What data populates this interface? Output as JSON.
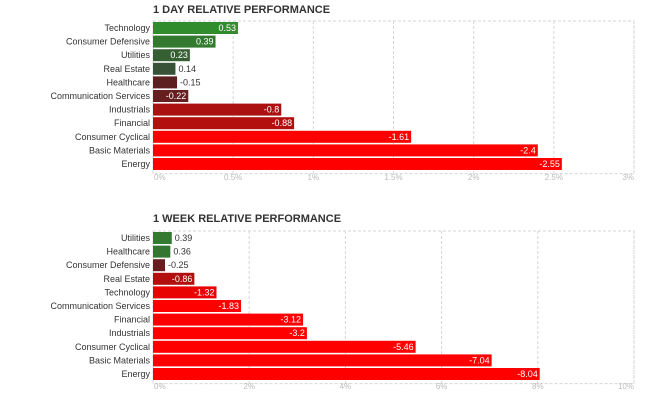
{
  "chart_data": [
    {
      "type": "bar",
      "orientation": "horizontal",
      "title": "1 DAY RELATIVE PERFORMANCE",
      "categories": [
        "Technology",
        "Consumer Defensive",
        "Utilities",
        "Real Estate",
        "Healthcare",
        "Communication Services",
        "Industrials",
        "Financial",
        "Consumer Cyclical",
        "Basic Materials",
        "Energy"
      ],
      "values": [
        0.53,
        0.39,
        0.23,
        0.14,
        -0.15,
        -0.22,
        -0.8,
        -0.88,
        -1.61,
        -2.4,
        -2.55
      ],
      "value_labels": [
        "0.53",
        "0.39",
        "0.23",
        "0.14",
        "-0.15",
        "-0.22",
        "-0.8",
        "-0.88",
        "-1.61",
        "-2.4",
        "-2.55"
      ],
      "xlim": [
        0,
        3
      ],
      "ticks": [
        "0%",
        "0.5%",
        "1%",
        "1.5%",
        "2%",
        "2.5%",
        "3%"
      ],
      "grid": true
    },
    {
      "type": "bar",
      "orientation": "horizontal",
      "title": "1 WEEK RELATIVE PERFORMANCE",
      "categories": [
        "Utilities",
        "Healthcare",
        "Consumer Defensive",
        "Real Estate",
        "Technology",
        "Communication Services",
        "Financial",
        "Industrials",
        "Consumer Cyclical",
        "Basic Materials",
        "Energy"
      ],
      "values": [
        0.39,
        0.36,
        -0.25,
        -0.86,
        -1.32,
        -1.83,
        -3.12,
        -3.2,
        -5.46,
        -7.04,
        -8.04
      ],
      "value_labels": [
        "0.39",
        "0.36",
        "-0.25",
        "-0.86",
        "-1.32",
        "-1.83",
        "-3.12",
        "-3.2",
        "-5.46",
        "-7.04",
        "-8.04"
      ],
      "xlim": [
        0,
        10
      ],
      "ticks": [
        "0%",
        "2%",
        "4%",
        "6%",
        "8%",
        "10%"
      ],
      "grid": true
    }
  ]
}
